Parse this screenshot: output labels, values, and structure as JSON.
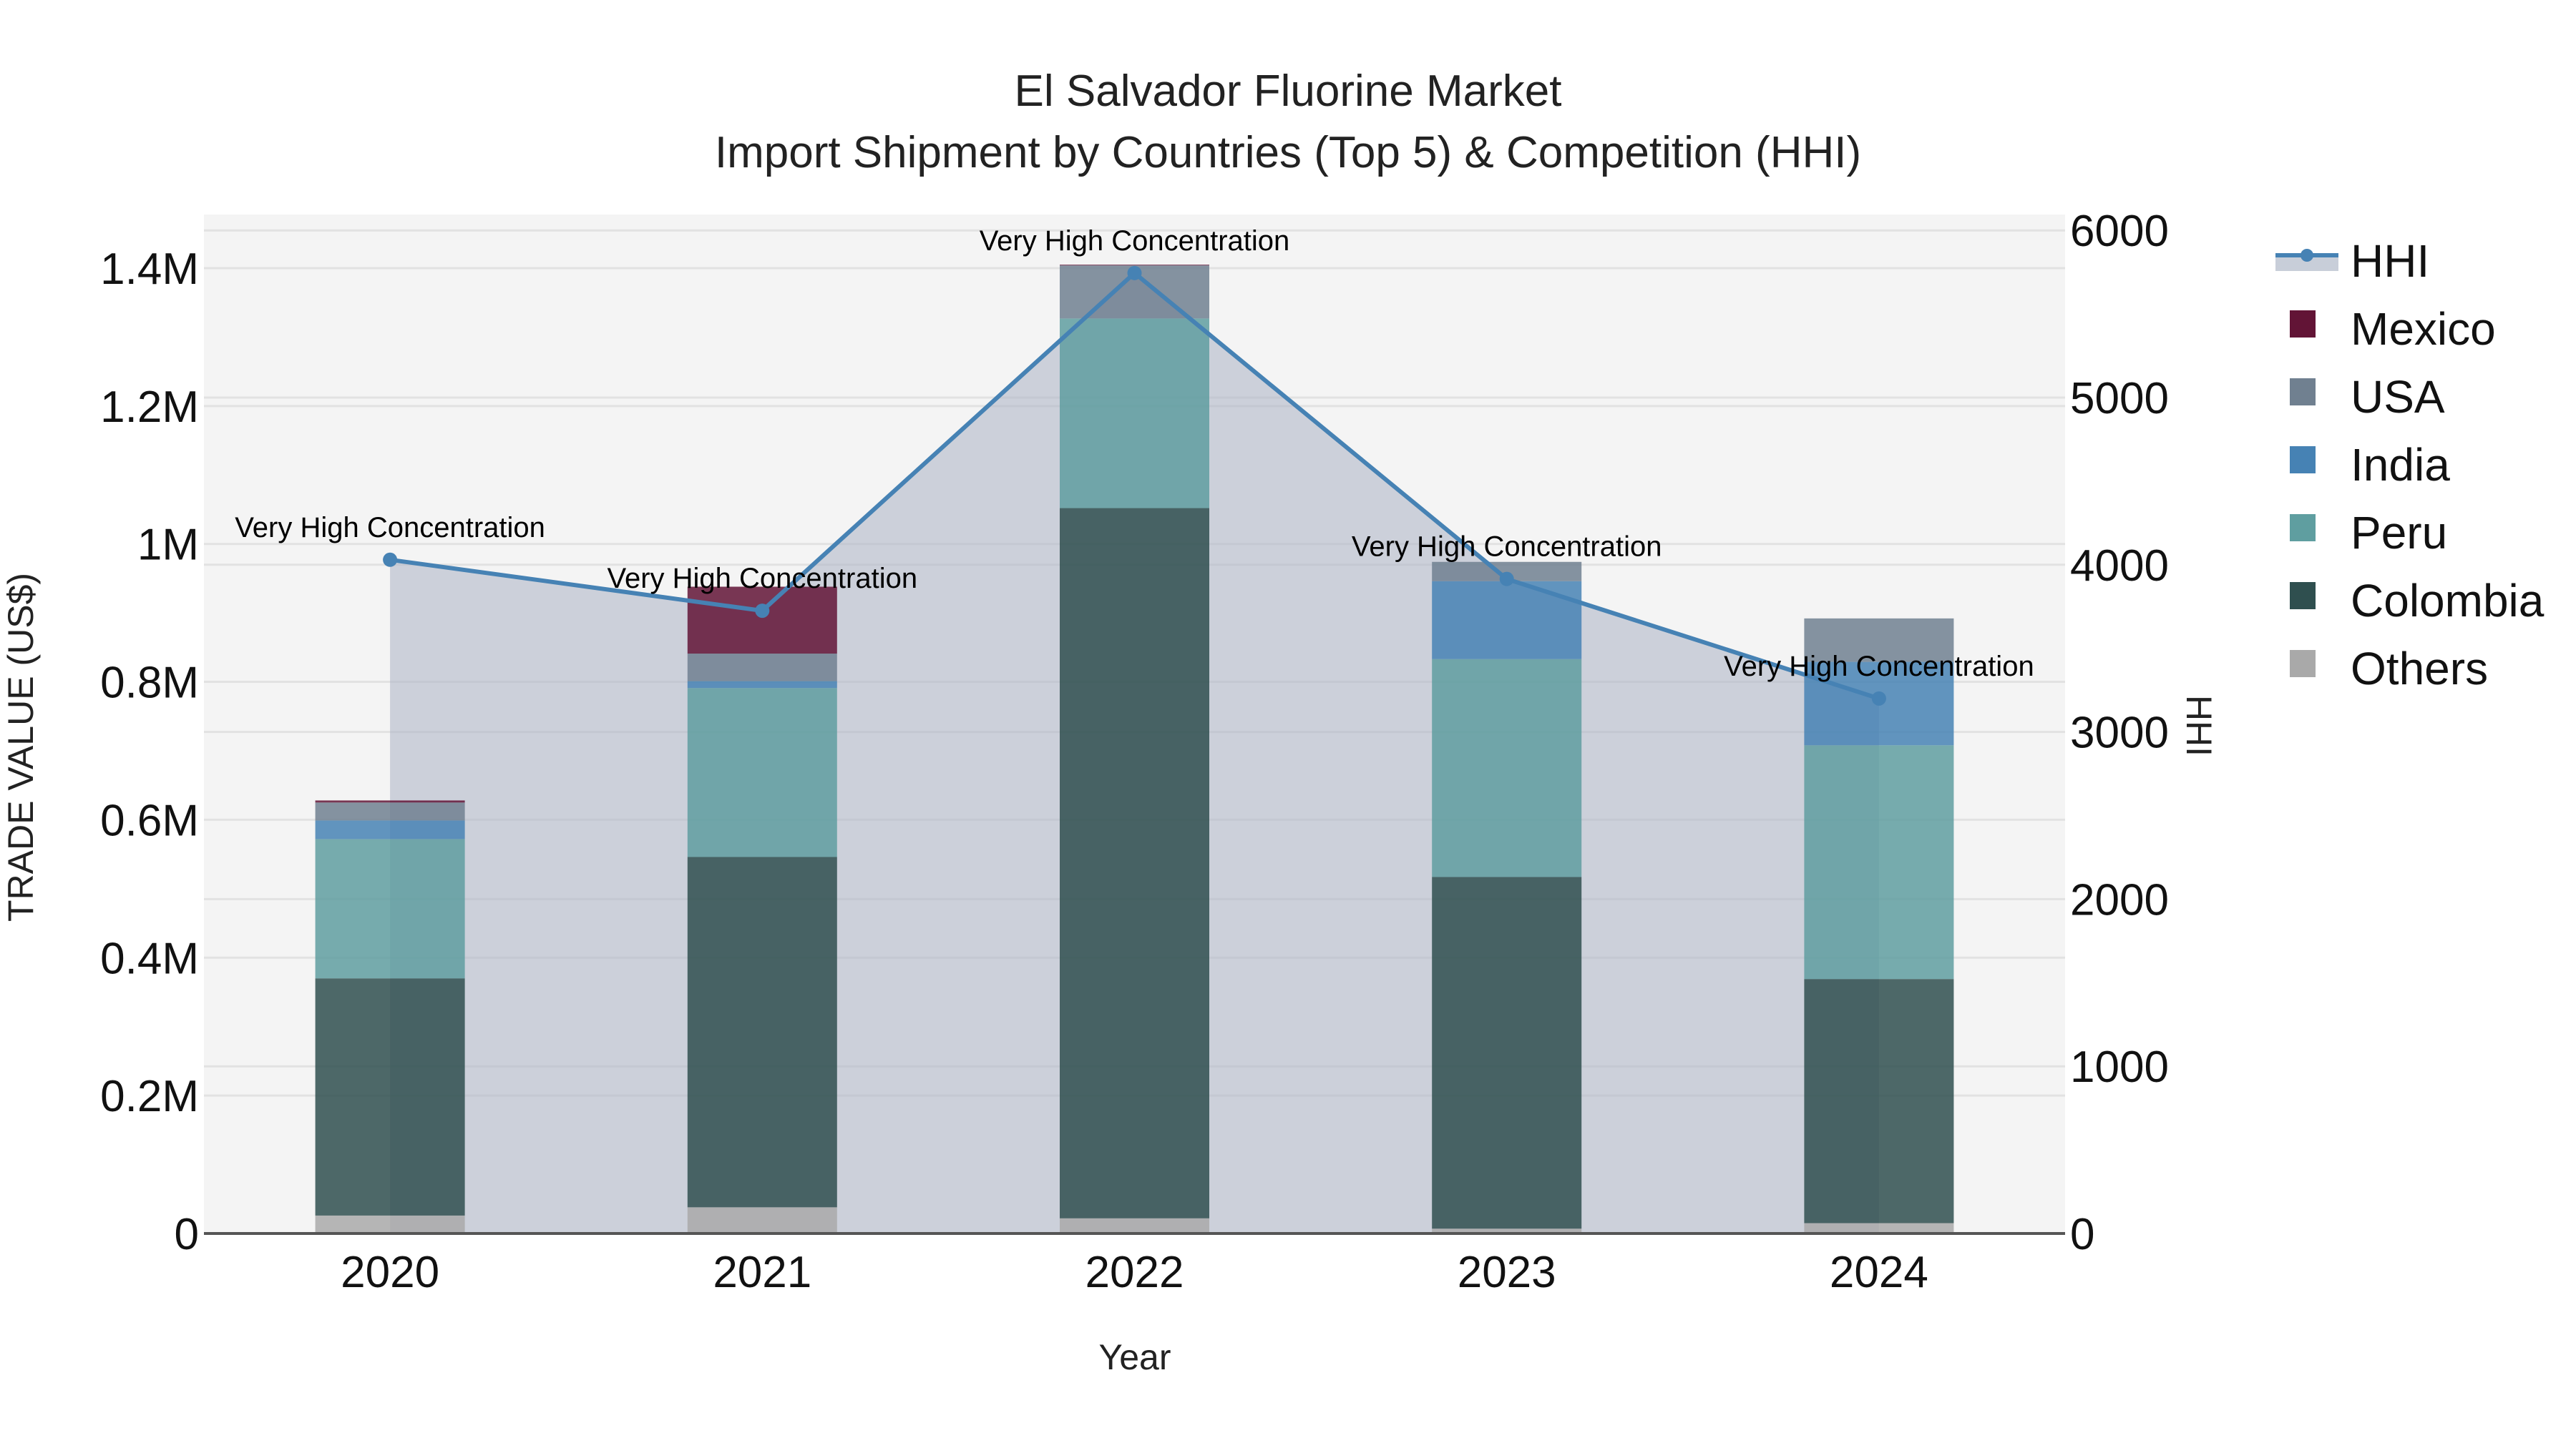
{
  "title": {
    "line1": "El Salvador Fluorine Market",
    "line2": "Import Shipment by Countries (Top 5) & Competition (HHI)"
  },
  "axes": {
    "x_title": "Year",
    "y_left_title": "TRADE VALUE (US$)",
    "y_right_title": "HHI",
    "y_left_ticks": [
      "0",
      "0.2M",
      "0.4M",
      "0.6M",
      "0.8M",
      "1M",
      "1.2M",
      "1.4M"
    ],
    "y_right_ticks": [
      "0",
      "1000",
      "2000",
      "3000",
      "4000",
      "5000",
      "6000"
    ],
    "x_ticks": [
      "2020",
      "2021",
      "2022",
      "2023",
      "2024"
    ]
  },
  "legend": [
    {
      "name": "HHI",
      "color": "#4682B4",
      "type": "line"
    },
    {
      "name": "Mexico",
      "color": "#621436",
      "type": "bar"
    },
    {
      "name": "USA",
      "color": "#708090",
      "type": "bar"
    },
    {
      "name": "India",
      "color": "#4682B4",
      "type": "bar"
    },
    {
      "name": "Peru",
      "color": "#5F9EA0",
      "type": "bar"
    },
    {
      "name": "Colombia",
      "color": "#2F4F4F",
      "type": "bar"
    },
    {
      "name": "Others",
      "color": "#A9A9A9",
      "type": "bar"
    }
  ],
  "annotations": [
    "Very High Concentration",
    "Very High Concentration",
    "Very High Concentration",
    "Very High Concentration",
    "Very High Concentration"
  ],
  "chart_data": {
    "type": "bar",
    "subtype": "stacked bar + line (dual axis)",
    "title": "El Salvador Fluorine Market — Import Shipment by Countries (Top 5) & Competition (HHI)",
    "xlabel": "Year",
    "ylabel": "TRADE VALUE (US$)",
    "y2label": "HHI",
    "categories": [
      "2020",
      "2021",
      "2022",
      "2023",
      "2024"
    ],
    "ylim": [
      0,
      1480000
    ],
    "y2lim": [
      0,
      6180
    ],
    "series": [
      {
        "name": "Others",
        "axis": "y",
        "type": "bar",
        "color": "#A9A9A9",
        "values": [
          26000,
          38000,
          22000,
          7000,
          15000
        ]
      },
      {
        "name": "Colombia",
        "axis": "y",
        "type": "bar",
        "color": "#2F4F4F",
        "values": [
          344000,
          508000,
          1030000,
          510000,
          354000
        ]
      },
      {
        "name": "Peru",
        "axis": "y",
        "type": "bar",
        "color": "#5F9EA0",
        "values": [
          202000,
          245000,
          275000,
          316000,
          339000
        ]
      },
      {
        "name": "India",
        "axis": "y",
        "type": "bar",
        "color": "#4682B4",
        "values": [
          27000,
          10000,
          0,
          113000,
          121000
        ]
      },
      {
        "name": "USA",
        "axis": "y",
        "type": "bar",
        "color": "#708090",
        "values": [
          26000,
          40000,
          77000,
          28000,
          63000
        ]
      },
      {
        "name": "Mexico",
        "axis": "y",
        "type": "bar",
        "color": "#621436",
        "values": [
          3000,
          97000,
          1000,
          0,
          0
        ]
      },
      {
        "name": "HHI",
        "axis": "y2",
        "type": "line",
        "color": "#4682B4",
        "values": [
          4030,
          3725,
          5745,
          3915,
          3200
        ]
      }
    ],
    "annotations": [
      {
        "x": "2020",
        "text": "Very High Concentration"
      },
      {
        "x": "2021",
        "text": "Very High Concentration"
      },
      {
        "x": "2022",
        "text": "Very High Concentration"
      },
      {
        "x": "2023",
        "text": "Very High Concentration"
      },
      {
        "x": "2024",
        "text": "Very High Concentration"
      }
    ],
    "grid": true,
    "legend_position": "right"
  }
}
